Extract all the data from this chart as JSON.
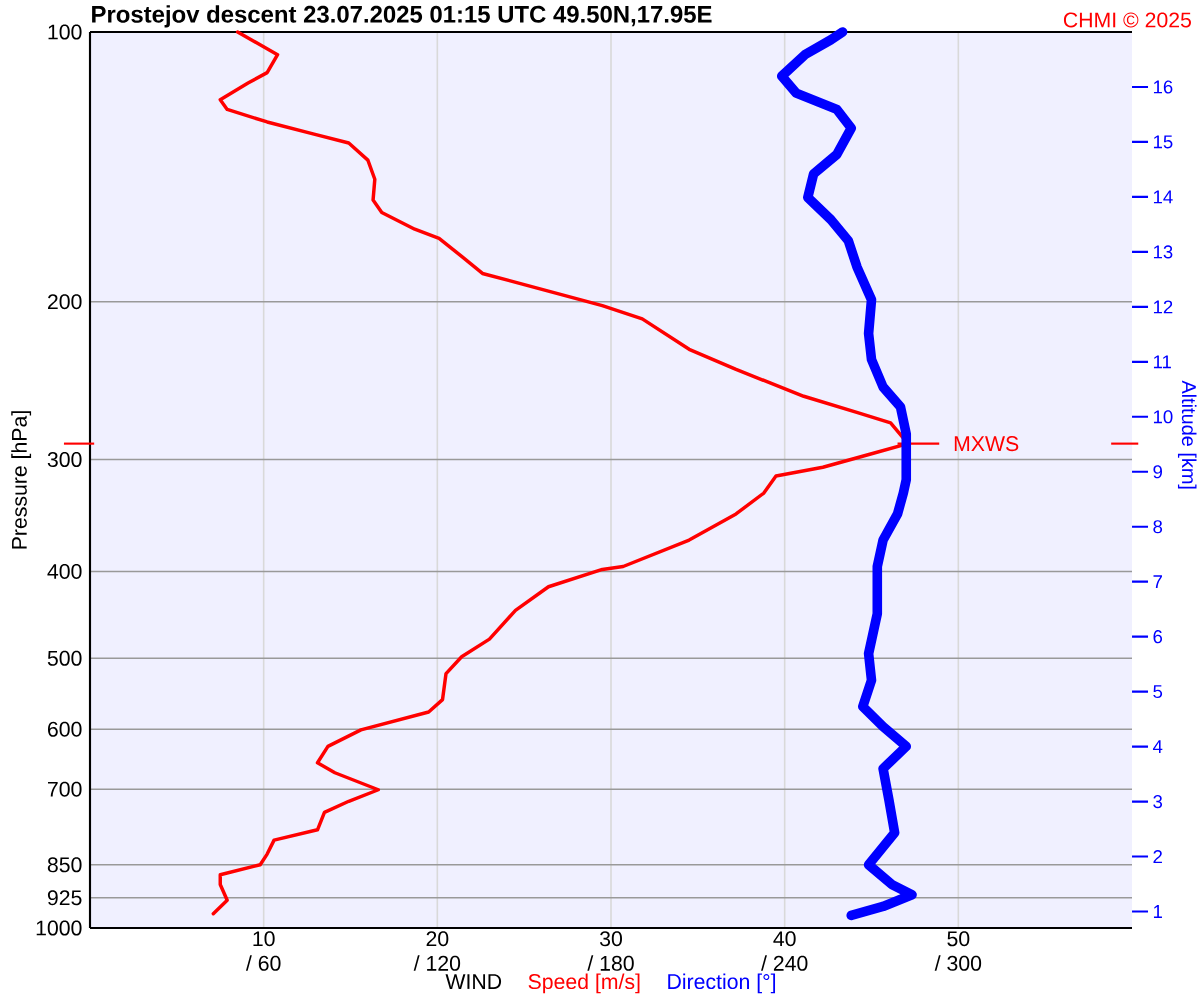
{
  "chart_data": {
    "type": "line",
    "title": "Prostejov   descent   23.07.2025 01:15 UTC   49.50N,17.95E",
    "xlabel": "WIND",
    "ylabel": "Pressure [hPa]",
    "y2label": "Altitude [km]",
    "annotations": [
      "CHMI © 2025",
      {
        "text": "MXWS",
        "x": 47.1,
        "y": 288
      }
    ],
    "series": [
      {
        "name": "Speed [m/s]",
        "color": "#ff0000",
        "x": [
          8.5,
          10.8,
          10.2,
          9.1,
          7.5,
          7.9,
          10.2,
          12.9,
          14.9,
          16.0,
          16.4,
          16.3,
          16.8,
          18.7,
          20.1,
          21.4,
          22.6,
          25.7,
          29.5,
          31.8,
          34.5,
          37.2,
          41.1,
          44.2,
          46.1,
          47.1,
          44.9,
          42.2,
          39.5,
          38.8,
          37.2,
          34.5,
          30.7,
          29.5,
          26.4,
          24.5,
          23.0,
          21.4,
          20.5,
          20.3,
          19.5,
          15.6,
          13.7,
          13.1,
          14.1,
          16.6,
          14.9,
          13.5,
          13.1,
          10.6,
          10.2,
          9.8,
          7.5,
          7.5,
          7.9,
          7.1
        ],
        "values": [
          100,
          106,
          111,
          114,
          119,
          122,
          126,
          130,
          133,
          139,
          146,
          154,
          159,
          166,
          170,
          178,
          186,
          193,
          202,
          209,
          226,
          238,
          255,
          266,
          273,
          288,
          296,
          306,
          313,
          327,
          345,
          369,
          395,
          398,
          416,
          442,
          476,
          498,
          520,
          556,
          574,
          601,
          627,
          654,
          671,
          701,
          722,
          743,
          777,
          798,
          827,
          850,
          872,
          894,
          931,
          964
        ]
      },
      {
        "name": "Direction [°]",
        "color": "#0000ff",
        "axis": "x2",
        "x": [
          260,
          256,
          247,
          239,
          244,
          258,
          263,
          258,
          250,
          248,
          256,
          262,
          265,
          270,
          269,
          270,
          274,
          280,
          282,
          282,
          281,
          279,
          274,
          272,
          272,
          269,
          270,
          267,
          274,
          282,
          274,
          276,
          278,
          269,
          277,
          284,
          274,
          263
        ],
        "values": [
          100,
          102,
          106,
          112,
          117,
          122,
          128,
          137,
          144,
          153,
          162,
          171,
          183,
          199,
          217,
          232,
          249,
          262,
          281,
          316,
          327,
          345,
          369,
          395,
          446,
          494,
          529,
          566,
          596,
          627,
          664,
          719,
          783,
          850,
          894,
          918,
          946,
          968
        ]
      }
    ],
    "xlim": [
      0,
      60
    ],
    "xticks": [
      10,
      20,
      30,
      40,
      50
    ],
    "x2lim": [
      0,
      360
    ],
    "x2ticks": [
      {
        "value": 60,
        "label": "/ 60"
      },
      {
        "value": 120,
        "label": "/ 120"
      },
      {
        "value": 180,
        "label": "/ 180"
      },
      {
        "value": 240,
        "label": "/ 240"
      },
      {
        "value": 300,
        "label": "/ 300"
      }
    ],
    "ylim": [
      1000,
      100
    ],
    "yticks": [
      100,
      200,
      300,
      400,
      500,
      600,
      700,
      850,
      925,
      1000
    ],
    "y2lim": [
      0.7,
      17.0
    ],
    "y2ticks": [
      1,
      2,
      3,
      4,
      5,
      6,
      7,
      8,
      9,
      10,
      11,
      12,
      13,
      14,
      15,
      16
    ],
    "log": "y",
    "grid": true,
    "legend": "bottom",
    "marker": "none",
    "line_style": "solid"
  }
}
